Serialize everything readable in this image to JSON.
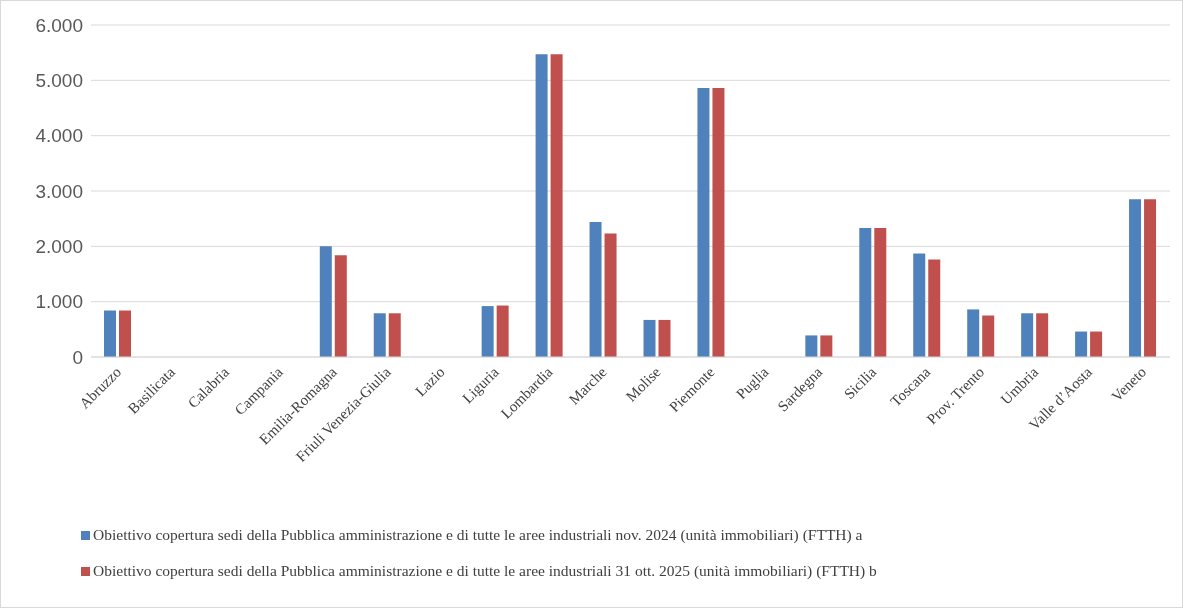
{
  "chart_data": {
    "type": "bar",
    "categories": [
      "Abruzzo",
      "Basilicata",
      "Calabria",
      "Campania",
      "Emilia-Romagna",
      "Friuli Venezia-Giulia",
      "Lazio",
      "Liguria",
      "Lombardia",
      "Marche",
      "Molise",
      "Piemonte",
      "Puglia",
      "Sardegna",
      "Sicilia",
      "Toscana",
      "Prov. Trento",
      "Umbria",
      "Valle d’Aosta",
      "Veneto"
    ],
    "series": [
      {
        "name": "Obiettivo copertura sedi della Pubblica amministrazione e di tutte le aree industriali nov. 2024 (unità immobiliari)  (FTTH) a",
        "color": "#4f81bd",
        "values": [
          840,
          null,
          null,
          null,
          2000,
          790,
          null,
          920,
          5470,
          2440,
          670,
          4860,
          null,
          390,
          2330,
          1870,
          860,
          790,
          460,
          2850
        ]
      },
      {
        "name": "Obiettivo copertura sedi della Pubblica amministrazione e di tutte le aree industriali 31 ott. 2025 (unità immobiliari)  (FTTH) b",
        "color": "#c0504d",
        "values": [
          840,
          null,
          null,
          null,
          1840,
          790,
          null,
          930,
          5470,
          2230,
          670,
          4860,
          null,
          390,
          2330,
          1760,
          750,
          790,
          460,
          2850
        ]
      }
    ],
    "ylim": [
      0,
      6000
    ],
    "yticks": [
      0,
      {
        "value": 1000,
        "label": "1.000"
      },
      {
        "value": 2000,
        "label": "2.000"
      },
      {
        "value": 3000,
        "label": "3.000"
      },
      {
        "value": 4000,
        "label": "4.000"
      },
      {
        "value": 5000,
        "label": "5.000"
      },
      {
        "value": 6000,
        "label": "6.000"
      }
    ],
    "grid": "y",
    "legend": "bottom"
  }
}
